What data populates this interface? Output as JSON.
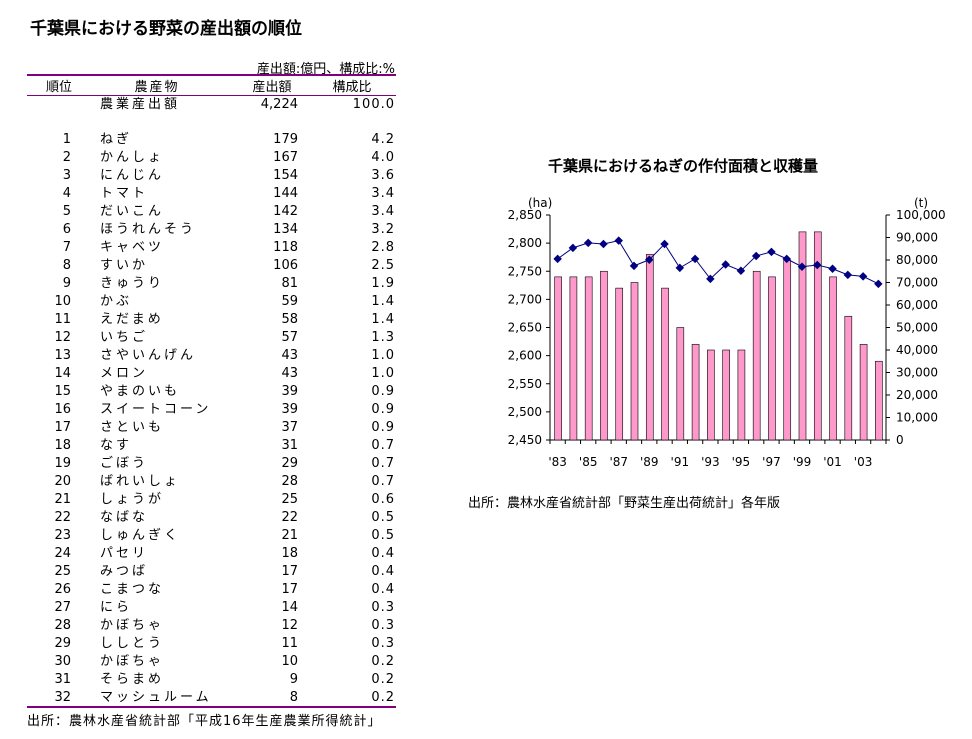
{
  "title": "千葉県における野菜の産出額の順位",
  "table": {
    "unit_note": "産出額:億円、構成比:%",
    "headers": [
      "順位",
      "農産物",
      "産出額",
      "構成比"
    ],
    "total": {
      "name": "農業産出額",
      "value": "4,224",
      "pct": "100.0"
    },
    "rows": [
      [
        "1",
        "ねぎ",
        "179",
        "4.2"
      ],
      [
        "2",
        "かんしょ",
        "167",
        "4.0"
      ],
      [
        "3",
        "にんじん",
        "154",
        "3.6"
      ],
      [
        "4",
        "トマト",
        "144",
        "3.4"
      ],
      [
        "5",
        "だいこん",
        "142",
        "3.4"
      ],
      [
        "6",
        "ほうれんそう",
        "134",
        "3.2"
      ],
      [
        "7",
        "キャベツ",
        "118",
        "2.8"
      ],
      [
        "8",
        "すいか",
        "106",
        "2.5"
      ],
      [
        "9",
        "きゅうり",
        "81",
        "1.9"
      ],
      [
        "10",
        "かぶ",
        "59",
        "1.4"
      ],
      [
        "11",
        "えだまめ",
        "58",
        "1.4"
      ],
      [
        "12",
        "いちご",
        "57",
        "1.3"
      ],
      [
        "13",
        "さやいんげん",
        "43",
        "1.0"
      ],
      [
        "14",
        "メロン",
        "43",
        "1.0"
      ],
      [
        "15",
        "やまのいも",
        "39",
        "0.9"
      ],
      [
        "16",
        "スイートコーン",
        "39",
        "0.9"
      ],
      [
        "17",
        "さといも",
        "37",
        "0.9"
      ],
      [
        "18",
        "なす",
        "31",
        "0.7"
      ],
      [
        "19",
        "ごぼう",
        "29",
        "0.7"
      ],
      [
        "20",
        "ばれいしょ",
        "28",
        "0.7"
      ],
      [
        "21",
        "しょうが",
        "25",
        "0.6"
      ],
      [
        "22",
        "なばな",
        "22",
        "0.5"
      ],
      [
        "23",
        "しゅんぎく",
        "21",
        "0.5"
      ],
      [
        "24",
        "パセリ",
        "18",
        "0.4"
      ],
      [
        "25",
        "みつば",
        "17",
        "0.4"
      ],
      [
        "26",
        "こまつな",
        "17",
        "0.4"
      ],
      [
        "27",
        "にら",
        "14",
        "0.3"
      ],
      [
        "28",
        "かぼちゃ",
        "12",
        "0.3"
      ],
      [
        "29",
        "ししとう",
        "11",
        "0.3"
      ],
      [
        "30",
        "かぼちゃ",
        "10",
        "0.2"
      ],
      [
        "31",
        "そらまめ",
        "9",
        "0.2"
      ],
      [
        "32",
        "マッシュルーム",
        "8",
        "0.2"
      ]
    ],
    "source": "出所：農林水産省統計部「平成16年生産農業所得統計」"
  },
  "chart_data": {
    "type": "bar+line",
    "title": "千葉県におけるねぎの作付面積と収穫量",
    "left_unit": "(ha)",
    "right_unit": "(t)",
    "x": [
      "'83",
      "'84",
      "'85",
      "'86",
      "'87",
      "'88",
      "'89",
      "'90",
      "'91",
      "'92",
      "'93",
      "'94",
      "'95",
      "'96",
      "'97",
      "'98",
      "'99",
      "'00",
      "'01",
      "'02",
      "'03",
      "'04"
    ],
    "x_tick_labels": [
      "'83",
      "'85",
      "'87",
      "'89",
      "'91",
      "'93",
      "'95",
      "'97",
      "'99",
      "'01",
      "'03"
    ],
    "ylim_left": [
      2450,
      2850
    ],
    "yticks_left": [
      "2,450",
      "2,500",
      "2,550",
      "2,600",
      "2,650",
      "2,700",
      "2,750",
      "2,800",
      "2,850"
    ],
    "ylim_right": [
      0,
      100000
    ],
    "yticks_right": [
      "0",
      "10,000",
      "20,000",
      "30,000",
      "40,000",
      "50,000",
      "60,000",
      "70,000",
      "80,000",
      "90,000",
      "100,000"
    ],
    "series": [
      {
        "name": "作付面積",
        "axis": "left",
        "kind": "bar",
        "color": "#ff99cc",
        "values": [
          2740,
          2740,
          2740,
          2750,
          2720,
          2730,
          2780,
          2720,
          2650,
          2620,
          2610,
          2610,
          2610,
          2750,
          2740,
          2770,
          2820,
          2820,
          2740,
          2670,
          2620,
          2590
        ]
      },
      {
        "name": "収穫量",
        "axis": "right",
        "kind": "line",
        "color": "#000080",
        "values": [
          80500,
          85400,
          87600,
          87100,
          88600,
          77400,
          80100,
          87100,
          76500,
          80500,
          71600,
          78000,
          75200,
          81800,
          83600,
          80500,
          77000,
          77800,
          76100,
          73400,
          72700,
          69400
        ]
      }
    ],
    "source": "出所：農林水産省統計部「野菜生産出荷統計」各年版"
  }
}
